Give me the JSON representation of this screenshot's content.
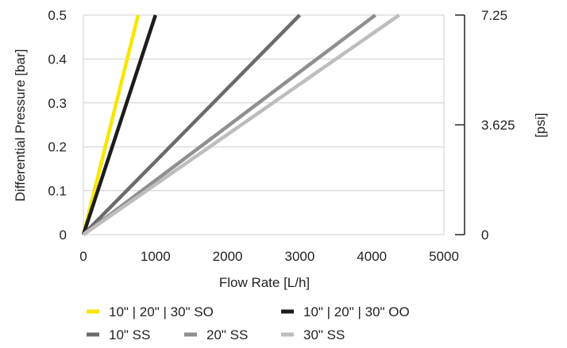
{
  "chart_data": {
    "type": "line",
    "xlabel": "Flow Rate [L/h]",
    "ylabel": "Differential Pressure [bar]",
    "y2label": "[psi]",
    "xlim": [
      0,
      5000
    ],
    "ylim": [
      0,
      0.5
    ],
    "y2lim": [
      0,
      7.25
    ],
    "xticks": [
      "0",
      "1000",
      "2000",
      "3000",
      "4000",
      "5000"
    ],
    "yticks": [
      "0",
      "0.1",
      "0.2",
      "0.3",
      "0.4",
      "0.5"
    ],
    "y2ticks": [
      "0",
      "3.625",
      "7.25"
    ],
    "grid": true,
    "legend_position": "bottom",
    "series": [
      {
        "name": "10\" | 20\" | 30\" SO",
        "color": "#f7e600",
        "x": [
          0,
          760
        ],
        "y": [
          0,
          0.5
        ]
      },
      {
        "name": "10\" | 20\" | 30\" OO",
        "color": "#1c1c1c",
        "x": [
          0,
          1000
        ],
        "y": [
          0,
          0.5
        ]
      },
      {
        "name": "10\" SS",
        "color": "#6b6b6b",
        "x": [
          0,
          3000
        ],
        "y": [
          0,
          0.5
        ]
      },
      {
        "name": "20\" SS",
        "color": "#8f8f8f",
        "x": [
          0,
          4050
        ],
        "y": [
          0,
          0.5
        ]
      },
      {
        "name": "30\" SS",
        "color": "#bdbdbd",
        "x": [
          0,
          4380
        ],
        "y": [
          0,
          0.5
        ]
      }
    ]
  }
}
